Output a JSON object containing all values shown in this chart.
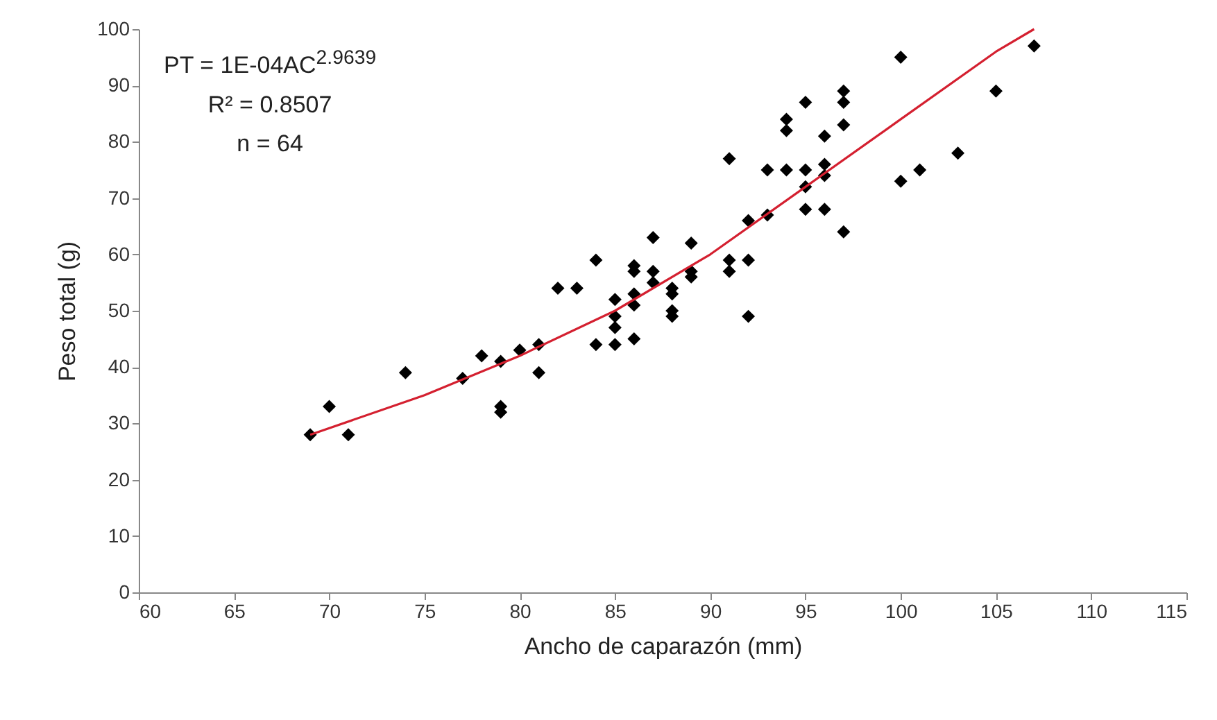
{
  "chart_data": {
    "type": "scatter",
    "xlabel": "Ancho de caparazón (mm)",
    "ylabel": "Peso total (g)",
    "annotations": [
      "PT = 1E-04AC$^{2.9639}$",
      "R² = 0.8507",
      "n = 64"
    ],
    "xlim": [
      60,
      115
    ],
    "xticks": [
      60,
      65,
      70,
      75,
      80,
      85,
      90,
      95,
      100,
      105,
      110,
      115
    ],
    "ylim": [
      0,
      100
    ],
    "yticks": [
      0,
      10,
      20,
      30,
      40,
      50,
      60,
      70,
      80,
      90,
      100
    ],
    "grid": false,
    "marker": "diamond",
    "series": [
      {
        "color": "#000000",
        "x": [
          69,
          70,
          71,
          74,
          77,
          78,
          79,
          79,
          79,
          80,
          81,
          81,
          82,
          83,
          84,
          84,
          85,
          85,
          85,
          85,
          86,
          86,
          86,
          86,
          87,
          87,
          88,
          88,
          88,
          89,
          89,
          89,
          91,
          91,
          91,
          92,
          92,
          92,
          93,
          93,
          94,
          94,
          94,
          95,
          95,
          95,
          95,
          96,
          96,
          96,
          97,
          97,
          97,
          97,
          100,
          100,
          101,
          103,
          105,
          107,
          86,
          87,
          96,
          88
        ],
        "values": [
          28,
          33,
          28,
          39,
          38,
          42,
          41,
          33,
          32,
          43,
          44,
          39,
          54,
          54,
          59,
          44,
          52,
          49,
          47,
          44,
          58,
          57,
          51,
          45,
          63,
          55,
          54,
          50,
          49,
          62,
          57,
          56,
          77,
          59,
          57,
          66,
          59,
          49,
          75,
          67,
          84,
          82,
          75,
          87,
          75,
          72,
          68,
          81,
          76,
          68,
          89,
          87,
          83,
          64,
          95,
          73,
          75,
          78,
          89,
          97,
          53,
          57,
          74,
          53
        ]
      },
      {
        "type": "line",
        "color": "#d42030",
        "marker": "none",
        "x": [
          69,
          75,
          80,
          85,
          90,
          95,
          100,
          105,
          107
        ],
        "values": [
          28,
          35,
          42,
          50,
          60,
          72,
          84,
          96,
          100
        ]
      }
    ]
  }
}
